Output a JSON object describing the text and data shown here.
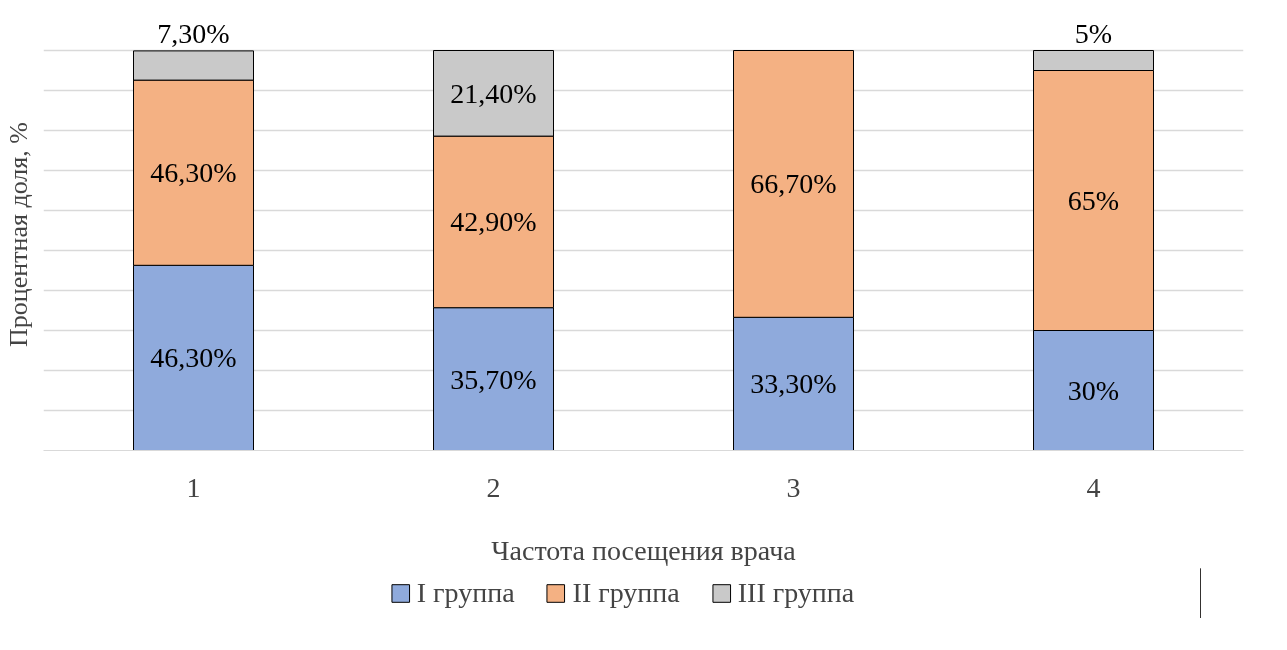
{
  "chart_data": {
    "type": "bar",
    "stacked": true,
    "xlabel": "Частота посещения врача",
    "ylabel": "Процентная доля, %",
    "categories": [
      "1",
      "2",
      "3",
      "4"
    ],
    "series": [
      {
        "name": "I группа",
        "color": "#8faadc",
        "values": [
          46.3,
          35.7,
          33.3,
          30
        ],
        "value_labels": [
          "46,30%",
          "35,70%",
          "33,30%",
          "30%"
        ]
      },
      {
        "name": "II группа",
        "color": "#f4b183",
        "values": [
          46.3,
          42.9,
          66.7,
          65
        ],
        "value_labels": [
          "46,30%",
          "42,90%",
          "66,70%",
          "65%"
        ]
      },
      {
        "name": "III группа",
        "color": "#c9c9c9",
        "values": [
          7.3,
          21.4,
          null,
          5
        ],
        "value_labels": [
          "7,30%",
          "21,40%",
          null,
          "5%"
        ]
      }
    ],
    "tick_labels": "x",
    "grid": "y",
    "legend": "bottom"
  }
}
